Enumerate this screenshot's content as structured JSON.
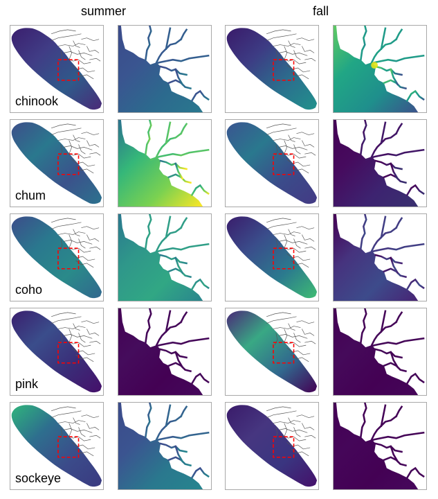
{
  "column_titles": {
    "summer": "summer",
    "fall": "fall"
  },
  "species": [
    {
      "label": "chinook",
      "summer": {
        "overview": [
          "#3b1f6e",
          "#403d86",
          "#2f5a8a",
          "#4a2a78"
        ],
        "zoom": [
          "#3b4b8a",
          "#3a5590",
          "#2c6a8e",
          "#2a788e"
        ]
      },
      "fall": {
        "overview": [
          "#3a1b6a",
          "#3d3c84",
          "#2b708e",
          "#21918c"
        ],
        "zoom": [
          "#5ec962",
          "#21a685",
          "#1f8f8c",
          "#3b528b"
        ],
        "zoom_hot": "#e3e418"
      }
    },
    {
      "label": "chum",
      "summer": {
        "overview": [
          "#3d4f8a",
          "#2a788e",
          "#3b528b",
          "#2c728e"
        ],
        "zoom": [
          "#2c728e",
          "#35b779",
          "#7ad151",
          "#fde725"
        ]
      },
      "fall": {
        "overview": [
          "#3a5590",
          "#2a788e",
          "#3b4b8a",
          "#433a84"
        ],
        "zoom": [
          "#440154",
          "#460b5e",
          "#3d2370",
          "#39306f"
        ]
      }
    },
    {
      "label": "coho",
      "summer": {
        "overview": [
          "#3c4d8a",
          "#2a788e",
          "#2a8a8a",
          "#31688e"
        ],
        "zoom": [
          "#2a788e",
          "#2f978a",
          "#31a784",
          "#2a858e"
        ]
      },
      "fall": {
        "overview": [
          "#3a1d6c",
          "#3a4d8b",
          "#2b7a8e",
          "#3fbc73"
        ],
        "zoom": [
          "#440154",
          "#46337e",
          "#3d4b8b",
          "#482374"
        ]
      }
    },
    {
      "label": "pink",
      "summer": {
        "overview": [
          "#3a1f6e",
          "#3a4d8b",
          "#3a2d78",
          "#45106a"
        ],
        "zoom": [
          "#440154",
          "#450c5c",
          "#440154",
          "#45085b"
        ]
      },
      "fall": {
        "overview": [
          "#4a2a78",
          "#39a884",
          "#31688e",
          "#440154"
        ],
        "zoom": [
          "#440154",
          "#450a5a",
          "#440154",
          "#450659"
        ]
      }
    },
    {
      "label": "sockeye",
      "summer": {
        "overview": [
          "#2fb47c",
          "#2e6f8e",
          "#3b4b8a",
          "#3a3a80"
        ],
        "zoom": [
          "#3b4b8a",
          "#3b5490",
          "#2a788e",
          "#26858e"
        ]
      },
      "fall": {
        "overview": [
          "#3a1b6a",
          "#463680",
          "#3a3580",
          "#45106a"
        ],
        "zoom": [
          "#440154",
          "#450659",
          "#440154",
          "#46085c"
        ]
      }
    }
  ],
  "colors": {
    "coastline": "#555555",
    "inset_box": "#ff0000",
    "panel_border": "#a8a8a8",
    "land": "#ffffff"
  }
}
